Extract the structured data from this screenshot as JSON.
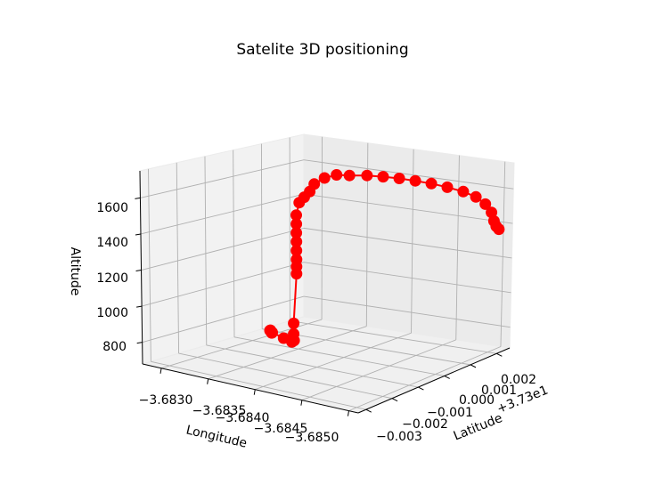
{
  "chart_data": {
    "type": "line",
    "projection": "3d",
    "title": "Satelite 3D positioning",
    "xlabel": "Longitude",
    "ylabel": "Latitude",
    "zlabel": "Altitude",
    "ylabel_offset": "+3.73e1",
    "x_ticks": [
      "−3.6830",
      "−3.6835",
      "−3.6840",
      "−3.6845",
      "−3.6850"
    ],
    "y_ticks": [
      "−0.003",
      "−0.002",
      "−0.001",
      "0.000",
      "0.001",
      "0.002"
    ],
    "z_ticks": [
      "800",
      "1000",
      "1200",
      "1400",
      "1600"
    ],
    "xlim": [
      -3.6828,
      -3.6851
    ],
    "ylim": [
      -0.0033,
      0.0025
    ],
    "zlim": [
      680,
      1750
    ],
    "grid": true,
    "legend": "none",
    "series": [
      {
        "color": "#ff0000",
        "marker": "circle",
        "points": [
          {
            "lon": -3.6831,
            "lat": 0.0003,
            "alt": 732
          },
          {
            "lon": -3.68312,
            "lat": 0.00025,
            "alt": 738
          },
          {
            "lon": -3.68315,
            "lat": 0.0002,
            "alt": 728
          },
          {
            "lon": -3.68317,
            "lat": 0.00015,
            "alt": 735
          },
          {
            "lon": -3.6834,
            "lat": -0.0002,
            "alt": 742
          },
          {
            "lon": -3.68355,
            "lat": -0.0004,
            "alt": 745
          },
          {
            "lon": -3.68359,
            "lat": -0.00045,
            "alt": 760
          },
          {
            "lon": -3.6836,
            "lat": -0.0005,
            "alt": 800
          },
          {
            "lon": -3.6836,
            "lat": -0.0005,
            "alt": 860
          },
          {
            "lon": -3.6837,
            "lat": -0.00072,
            "alt": 1160
          },
          {
            "lon": -3.6837,
            "lat": -0.00072,
            "alt": 1200
          },
          {
            "lon": -3.6837,
            "lat": -0.00072,
            "alt": 1240
          },
          {
            "lon": -3.6837,
            "lat": -0.00072,
            "alt": 1290
          },
          {
            "lon": -3.6837,
            "lat": -0.00072,
            "alt": 1340
          },
          {
            "lon": -3.6837,
            "lat": -0.00072,
            "alt": 1390
          },
          {
            "lon": -3.6837,
            "lat": -0.00072,
            "alt": 1440
          },
          {
            "lon": -3.6837,
            "lat": -0.00072,
            "alt": 1490
          },
          {
            "lon": -3.68372,
            "lat": -0.00068,
            "alt": 1560
          },
          {
            "lon": -3.68375,
            "lat": -0.0006,
            "alt": 1590
          },
          {
            "lon": -3.68378,
            "lat": -0.0005,
            "alt": 1620
          },
          {
            "lon": -3.6838,
            "lat": -0.0004,
            "alt": 1660
          },
          {
            "lon": -3.68385,
            "lat": -0.0002,
            "alt": 1690
          },
          {
            "lon": -3.68392,
            "lat": 0.0,
            "alt": 1705
          },
          {
            "lon": -3.684,
            "lat": 0.0002,
            "alt": 1700
          },
          {
            "lon": -3.6841,
            "lat": 0.0005,
            "alt": 1695
          },
          {
            "lon": -3.6842,
            "lat": 0.00075,
            "alt": 1685
          },
          {
            "lon": -3.6843,
            "lat": 0.001,
            "alt": 1672
          },
          {
            "lon": -3.6844,
            "lat": 0.00125,
            "alt": 1655
          },
          {
            "lon": -3.6845,
            "lat": 0.0015,
            "alt": 1635
          },
          {
            "lon": -3.6846,
            "lat": 0.00175,
            "alt": 1610
          },
          {
            "lon": -3.6847,
            "lat": 0.002,
            "alt": 1580
          },
          {
            "lon": -3.68478,
            "lat": 0.0022,
            "alt": 1545
          },
          {
            "lon": -3.68484,
            "lat": 0.00235,
            "alt": 1500
          },
          {
            "lon": -3.68488,
            "lat": 0.00245,
            "alt": 1450
          },
          {
            "lon": -3.6849,
            "lat": 0.00248,
            "alt": 1400
          },
          {
            "lon": -3.68492,
            "lat": 0.0025,
            "alt": 1370
          },
          {
            "lon": -3.68495,
            "lat": 0.0025,
            "alt": 1355
          }
        ]
      }
    ]
  }
}
